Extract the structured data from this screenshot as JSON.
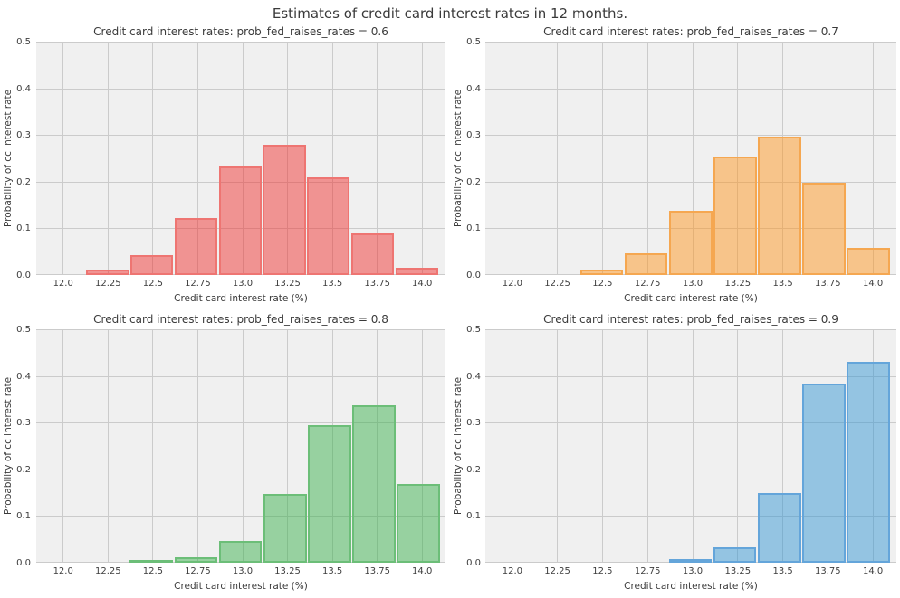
{
  "figure_title": "Estimates of credit card interest rates in 12 months.",
  "style": {
    "figure_bg": "#ffffff",
    "axes_bg": "#f0f0f0",
    "grid_color": "#cbcbcb",
    "title_color": "#3a3a3a",
    "tick_color": "#3d3d3d"
  },
  "chart_data": [
    {
      "type": "bar",
      "subtype": "histogram",
      "title": "Credit card interest rates: prob_fed_raises_rates = 0.6",
      "prob_fed_raises_rates": 0.6,
      "xlabel": "Credit card interest rate (%)",
      "ylabel": "Probability of cc interest rate",
      "xlim": [
        11.85,
        14.13
      ],
      "ylim": [
        0,
        0.5
      ],
      "grid": true,
      "legend": false,
      "x_ticks": [
        12.0,
        12.25,
        12.5,
        12.75,
        13.0,
        13.25,
        13.5,
        13.75,
        14.0
      ],
      "x_tick_labels": [
        "12.0",
        "12.25",
        "12.5",
        "12.75",
        "13.0",
        "13.25",
        "13.5",
        "13.75",
        "14.0"
      ],
      "y_ticks": [
        0.0,
        0.1,
        0.2,
        0.3,
        0.4,
        0.5
      ],
      "y_tick_labels": [
        "0.0",
        "0.1",
        "0.2",
        "0.3",
        "0.4",
        "0.5"
      ],
      "bin_edges": [
        12.125,
        12.371,
        12.617,
        12.863,
        13.109,
        13.355,
        13.601,
        13.847,
        14.093
      ],
      "values": [
        0.011,
        0.042,
        0.123,
        0.233,
        0.28,
        0.209,
        0.09,
        0.015
      ],
      "fill_color": "rgba(240,54,52,0.5)",
      "edge_color": "#ee7572"
    },
    {
      "type": "bar",
      "subtype": "histogram",
      "title": "Credit card interest rates: prob_fed_raises_rates = 0.7",
      "prob_fed_raises_rates": 0.7,
      "xlabel": "Credit card interest rate (%)",
      "ylabel": "Probability of cc interest rate",
      "xlim": [
        11.85,
        14.13
      ],
      "ylim": [
        0,
        0.5
      ],
      "grid": true,
      "legend": false,
      "x_ticks": [
        12.0,
        12.25,
        12.5,
        12.75,
        13.0,
        13.25,
        13.5,
        13.75,
        14.0
      ],
      "x_tick_labels": [
        "12.0",
        "12.25",
        "12.5",
        "12.75",
        "13.0",
        "13.25",
        "13.5",
        "13.75",
        "14.0"
      ],
      "y_ticks": [
        0.0,
        0.1,
        0.2,
        0.3,
        0.4,
        0.5
      ],
      "y_tick_labels": [
        "0.0",
        "0.1",
        "0.2",
        "0.3",
        "0.4",
        "0.5"
      ],
      "bin_edges": [
        12.372,
        12.619,
        12.865,
        13.112,
        13.358,
        13.605,
        13.851,
        14.098
      ],
      "values": [
        0.011,
        0.047,
        0.137,
        0.254,
        0.297,
        0.198,
        0.058
      ],
      "fill_color": "rgba(254,152,36,0.5)",
      "edge_color": "#f5a751"
    },
    {
      "type": "bar",
      "subtype": "histogram",
      "title": "Credit card interest rates: prob_fed_raises_rates = 0.8",
      "prob_fed_raises_rates": 0.8,
      "xlabel": "Credit card interest rate (%)",
      "ylabel": "Probability of cc interest rate",
      "xlim": [
        11.85,
        14.13
      ],
      "ylim": [
        0,
        0.5
      ],
      "grid": true,
      "legend": false,
      "x_ticks": [
        12.0,
        12.25,
        12.5,
        12.75,
        13.0,
        13.25,
        13.5,
        13.75,
        14.0
      ],
      "x_tick_labels": [
        "12.0",
        "12.25",
        "12.5",
        "12.75",
        "13.0",
        "13.25",
        "13.5",
        "13.75",
        "14.0"
      ],
      "y_ticks": [
        0.0,
        0.1,
        0.2,
        0.3,
        0.4,
        0.5
      ],
      "y_tick_labels": [
        "0.0",
        "0.1",
        "0.2",
        "0.3",
        "0.4",
        "0.5"
      ],
      "bin_edges": [
        12.368,
        12.616,
        12.864,
        13.112,
        13.36,
        13.608,
        13.856,
        14.104
      ],
      "values": [
        0.005,
        0.012,
        0.047,
        0.147,
        0.294,
        0.337,
        0.168
      ],
      "fill_color": "rgba(62,178,80,0.5)",
      "edge_color": "#6cbe78"
    },
    {
      "type": "bar",
      "subtype": "histogram",
      "title": "Credit card interest rates: prob_fed_raises_rates = 0.9",
      "prob_fed_raises_rates": 0.9,
      "xlabel": "Credit card interest rate (%)",
      "ylabel": "Probability of cc interest rate",
      "xlim": [
        11.85,
        14.13
      ],
      "ylim": [
        0,
        0.5
      ],
      "grid": true,
      "legend": false,
      "x_ticks": [
        12.0,
        12.25,
        12.5,
        12.75,
        13.0,
        13.25,
        13.5,
        13.75,
        14.0
      ],
      "x_tick_labels": [
        "12.0",
        "12.25",
        "12.5",
        "12.75",
        "13.0",
        "13.25",
        "13.5",
        "13.75",
        "14.0"
      ],
      "y_ticks": [
        0.0,
        0.1,
        0.2,
        0.3,
        0.4,
        0.5
      ],
      "y_tick_labels": [
        "0.0",
        "0.1",
        "0.2",
        "0.3",
        "0.4",
        "0.5"
      ],
      "bin_edges": [
        12.864,
        13.111,
        13.358,
        13.604,
        13.851,
        14.098
      ],
      "values": [
        0.008,
        0.034,
        0.15,
        0.383,
        0.43
      ],
      "fill_color": "rgba(56,152,212,0.5)",
      "edge_color": "#64a5da"
    }
  ]
}
